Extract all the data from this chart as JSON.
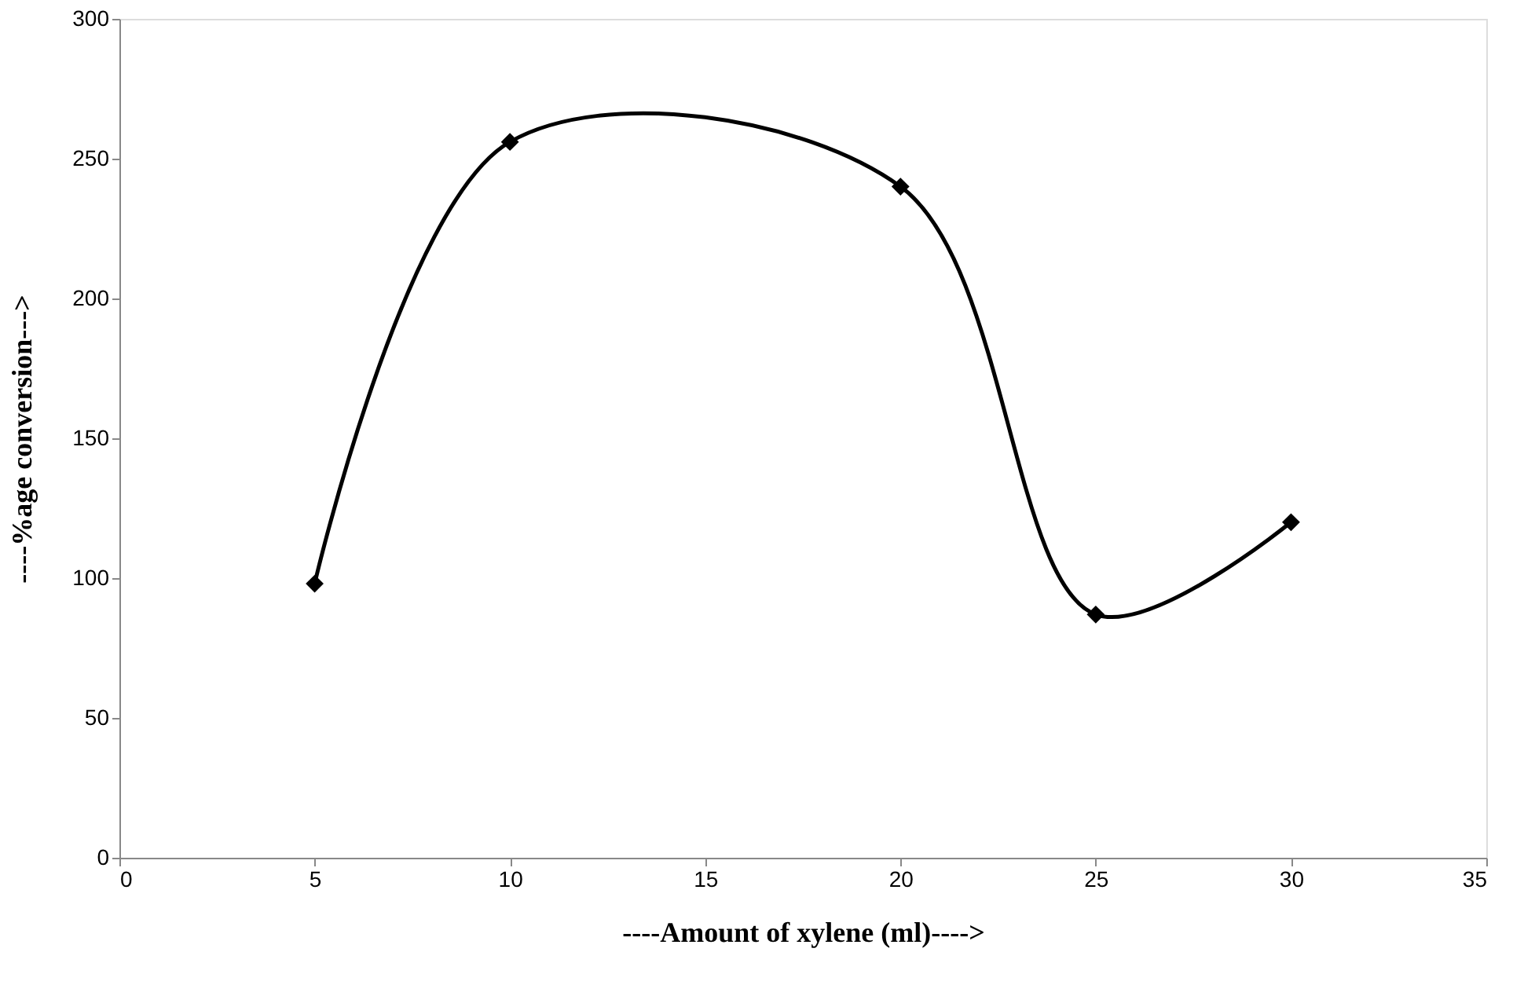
{
  "chart_data": {
    "type": "line",
    "xlabel": "----Amount of xylene (ml)---->",
    "ylabel": "----%age conversion--->",
    "x": [
      5,
      10,
      20,
      25,
      30
    ],
    "series": [
      {
        "color": "#000000",
        "values": [
          98,
          256,
          240,
          87,
          120
        ]
      }
    ],
    "xlim": [
      0,
      35
    ],
    "xticks": [
      0,
      5,
      10,
      15,
      20,
      25,
      30,
      35
    ],
    "ylim": [
      0,
      300
    ],
    "yticks": [
      0,
      50,
      100,
      150,
      200,
      250,
      300
    ],
    "marker": "diamond",
    "line_style": "solid",
    "grid": false,
    "legend": false
  }
}
